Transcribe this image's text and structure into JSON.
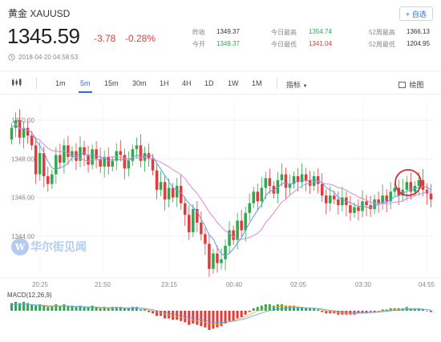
{
  "header": {
    "title": "黄金 XAUUSD",
    "add_button": "+ 自选",
    "price": "1345.59",
    "change": "-3.78",
    "change_pct": "-0.28%",
    "timestamp": "2018-04-20 04:58:53"
  },
  "stats": {
    "prev_close_label": "昨收",
    "prev_close": "1349.37",
    "open_label": "今开",
    "open": "1349.37",
    "high_label": "今日最高",
    "high": "1354.74",
    "low_label": "今日最低",
    "low": "1341.04",
    "w52_high_label": "52周最高",
    "w52_high": "1366.13",
    "w52_low_label": "52周最低",
    "w52_low": "1204.95"
  },
  "toolbar": {
    "tabs": [
      "1m",
      "5m",
      "15m",
      "30m",
      "1H",
      "4H",
      "1D",
      "1W",
      "1M"
    ],
    "active_tab": "5m",
    "indicator_label": "指标",
    "draw_label": "绘图"
  },
  "watermark": "华尔街见闻",
  "macd_label": "MACD(12,26,9)",
  "colors": {
    "up": "#2fa84f",
    "down": "#e23b3b",
    "ma_fast": "#5aa0e6",
    "ma_slow": "#d98ad4",
    "accent": "#2a6fd6"
  },
  "chart_data": {
    "type": "candlestick",
    "x_ticks": [
      "20:25",
      "21:50",
      "23:15",
      "00:40",
      "02:05",
      "03:30",
      "04:55"
    ],
    "y_ticks": [
      "1344.00",
      "1346.00",
      "1348.00",
      "1350.00"
    ],
    "y_range": [
      1342.0,
      1351.0
    ],
    "closes": [
      1349.6,
      1350.0,
      1349.1,
      1349.6,
      1349.2,
      1348.7,
      1347.2,
      1348.3,
      1347.1,
      1346.7,
      1347.2,
      1348.2,
      1347.8,
      1348.7,
      1348.1,
      1348.4,
      1347.9,
      1348.6,
      1348.2,
      1347.7,
      1348.5,
      1348.0,
      1347.6,
      1348.1,
      1347.6,
      1347.9,
      1348.4,
      1348.2,
      1347.5,
      1347.9,
      1348.5,
      1348.7,
      1347.9,
      1348.3,
      1348.0,
      1347.4,
      1346.4,
      1346.8,
      1345.9,
      1346.5,
      1346.0,
      1346.6,
      1345.7,
      1345.1,
      1344.2,
      1345.4,
      1344.7,
      1344.1,
      1343.6,
      1342.3,
      1343.1,
      1342.6,
      1342.8,
      1343.5,
      1344.3,
      1343.8,
      1344.8,
      1344.3,
      1345.2,
      1345.7,
      1346.3,
      1345.8,
      1346.5,
      1347.0,
      1346.6,
      1346.2,
      1346.9,
      1347.2,
      1346.5,
      1346.7,
      1347.1,
      1346.8,
      1347.2,
      1346.9,
      1346.6,
      1347.1,
      1346.7,
      1346.1,
      1345.7,
      1346.1,
      1345.9,
      1345.6,
      1346.0,
      1345.6,
      1345.2,
      1345.5,
      1345.3,
      1345.8,
      1345.6,
      1345.4,
      1345.9,
      1345.7,
      1346.1,
      1345.8,
      1346.3,
      1346.5,
      1346.1,
      1346.4,
      1346.8,
      1346.3,
      1346.6,
      1346.9,
      1346.4,
      1346.2,
      1345.9
    ],
    "series": [
      {
        "name": "MA fast",
        "color": "#5aa0e6"
      },
      {
        "name": "MA slow",
        "color": "#d98ad4"
      }
    ],
    "macd_hist": [
      0.6,
      0.7,
      0.6,
      0.7,
      0.6,
      0.5,
      0.4,
      0.5,
      0.4,
      0.3,
      0.4,
      0.5,
      0.4,
      0.5,
      0.4,
      0.4,
      0.3,
      0.4,
      0.3,
      0.3,
      0.4,
      0.3,
      0.2,
      0.3,
      0.2,
      0.3,
      0.3,
      0.3,
      0.2,
      0.2,
      0.3,
      0.3,
      0.1,
      0.1,
      -0.1,
      -0.2,
      -0.4,
      -0.4,
      -0.6,
      -0.6,
      -0.7,
      -0.7,
      -0.8,
      -0.9,
      -1.1,
      -1.0,
      -1.1,
      -1.2,
      -1.3,
      -1.5,
      -1.4,
      -1.3,
      -1.2,
      -1.0,
      -0.8,
      -0.8,
      -0.6,
      -0.5,
      -0.3,
      -0.1,
      0.2,
      0.3,
      0.4,
      0.5,
      0.5,
      0.4,
      0.5,
      0.5,
      0.4,
      0.4,
      0.4,
      0.3,
      0.3,
      0.2,
      0.2,
      0.2,
      0.1,
      -0.1,
      -0.2,
      -0.2,
      -0.2,
      -0.3,
      -0.3,
      -0.3,
      -0.3,
      -0.3,
      -0.2,
      -0.2,
      -0.2,
      -0.1,
      -0.1,
      0.0,
      0.1,
      0.1,
      0.2,
      0.2,
      0.2,
      0.2,
      0.3,
      0.2,
      0.2,
      0.2,
      0.1,
      0.0,
      -0.1
    ]
  }
}
